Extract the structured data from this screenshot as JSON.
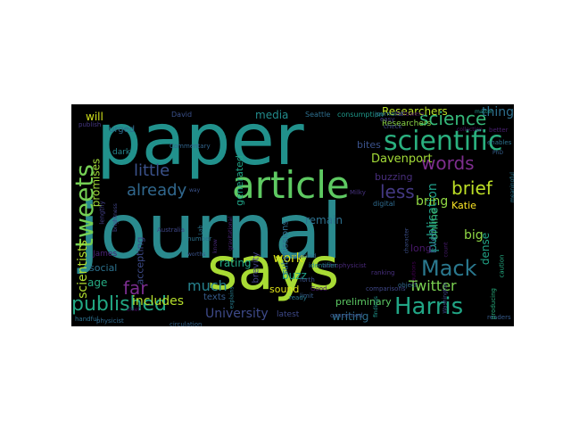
{
  "words": [
    {
      "text": "journal",
      "color": "#2a8a8e"
    },
    {
      "text": "paper",
      "color": "#21918c"
    },
    {
      "text": "says",
      "color": "#a8db34"
    },
    {
      "text": "article",
      "color": "#5ec962"
    },
    {
      "text": "ideas",
      "color": "#2c728e"
    },
    {
      "text": "scientific",
      "color": "#2ab07f"
    },
    {
      "text": "Harris",
      "color": "#21a585"
    },
    {
      "text": "published",
      "color": "#22a884"
    },
    {
      "text": "tweets",
      "color": "#75d054"
    },
    {
      "text": "science",
      "color": "#35b779"
    },
    {
      "text": "Mack",
      "color": "#2a788e"
    },
    {
      "text": "words",
      "color": "#7e2e8e"
    },
    {
      "text": "brief",
      "color": "#bddf26"
    },
    {
      "text": "already",
      "color": "#31688e"
    },
    {
      "text": "little",
      "color": "#3b528b"
    },
    {
      "text": "Twitter",
      "color": "#7ad151"
    },
    {
      "text": "far",
      "color": "#7a2d8e"
    },
    {
      "text": "much",
      "color": "#26828e"
    },
    {
      "text": "University",
      "color": "#3e4a89"
    },
    {
      "text": "includes",
      "color": "#b5de2b"
    },
    {
      "text": "work",
      "color": "#dde318"
    },
    {
      "text": "less",
      "color": "#443983"
    },
    {
      "text": "scientists",
      "color": "#b0dd2f"
    },
    {
      "text": "promises",
      "color": "#a0da39"
    },
    {
      "text": "Davenport",
      "color": "#a2da37"
    },
    {
      "text": "publication",
      "color": "#1f9e89"
    },
    {
      "text": "social",
      "color": "#2c728e"
    },
    {
      "text": "writing",
      "color": "#2e6e8e"
    },
    {
      "text": "rating",
      "color": "#22a884"
    },
    {
      "text": "things",
      "color": "#2e6f8e"
    },
    {
      "text": "online",
      "color": "#3aba76"
    },
    {
      "text": "Researchers",
      "color": "#b8de29"
    },
    {
      "text": "generated",
      "color": "#20a386"
    },
    {
      "text": "bring",
      "color": "#90d743"
    },
    {
      "text": "remain",
      "color": "#2d708e"
    },
    {
      "text": "buzz",
      "color": "#1fa088"
    },
    {
      "text": "buzzing",
      "color": "#472d7b"
    },
    {
      "text": "Katie",
      "color": "#fde725"
    },
    {
      "text": "big",
      "color": "#8fd744"
    },
    {
      "text": "bites",
      "color": "#3b528b"
    },
    {
      "text": "dense",
      "color": "#20a386"
    },
    {
      "text": "sound",
      "color": "#dfe318"
    },
    {
      "text": "media",
      "color": "#228c8d"
    },
    {
      "text": "accepting",
      "color": "#3e4c8a"
    },
    {
      "text": "age",
      "color": "#25ab82"
    },
    {
      "text": "preliminary",
      "color": "#5cc863"
    },
    {
      "text": "Even",
      "color": "#306a8e"
    },
    {
      "text": "will",
      "color": "#d0e11c"
    },
    {
      "text": "long",
      "color": "#48186a"
    },
    {
      "text": "submissions",
      "color": "#2f6c8e"
    },
    {
      "text": "brevity",
      "color": "#424186"
    },
    {
      "text": "texts",
      "color": "#365c8d"
    },
    {
      "text": "latest",
      "color": "#3e4989"
    },
    {
      "text": "Milky",
      "color": "#46327e"
    },
    {
      "text": "urged",
      "color": "#2f6b8e"
    },
    {
      "text": "dark",
      "color": "#25858e"
    },
    {
      "text": "James",
      "color": "#482173"
    },
    {
      "text": "David",
      "color": "#3b518b"
    },
    {
      "text": "Seattle",
      "color": "#2e6f8e"
    },
    {
      "text": "consumption",
      "color": "#1f998a"
    },
    {
      "text": "journalist",
      "color": "#2d718e"
    },
    {
      "text": "followers",
      "color": "#471063"
    },
    {
      "text": "Researchers",
      "color": "#8bd646"
    },
    {
      "text": "Commentary",
      "color": "#32658e"
    },
    {
      "text": "publish",
      "color": "#453781"
    },
    {
      "text": "Australia",
      "color": "#3f4889"
    },
    {
      "text": "physicist",
      "color": "#30698e"
    },
    {
      "text": "astrophysicist",
      "color": "#482878"
    },
    {
      "text": "comparisons",
      "color": "#3f4788"
    },
    {
      "text": "ranking",
      "color": "#472f7d"
    },
    {
      "text": "limit",
      "color": "#365d8d"
    },
    {
      "text": "digital",
      "color": "#2f6b8e"
    },
    {
      "text": "caution",
      "color": "#25ab82"
    },
    {
      "text": "concerned",
      "color": "#3b528b"
    },
    {
      "text": "Good",
      "color": "#48186a"
    },
    {
      "text": "circulation",
      "color": "#33638d"
    },
    {
      "text": "gravitational",
      "color": "#482475"
    },
    {
      "text": "lengthy",
      "color": "#423f85"
    },
    {
      "text": "handful",
      "color": "#2d718e"
    },
    {
      "text": "readers",
      "color": "#365c8d"
    },
    {
      "text": "check",
      "color": "#3e4a89"
    },
    {
      "text": "identifier",
      "color": "#25838e"
    },
    {
      "text": "object",
      "color": "#31688e"
    },
    {
      "text": "producing",
      "color": "#29af7f"
    },
    {
      "text": "cautions",
      "color": "#440154"
    },
    {
      "text": "matter",
      "color": "#1f968b"
    },
    {
      "text": "forth",
      "color": "#3b528b"
    },
    {
      "text": "ready",
      "color": "#2a788e"
    },
    {
      "text": "chief",
      "color": "#46085c"
    },
    {
      "text": "explains",
      "color": "#287d8e"
    },
    {
      "text": "number",
      "color": "#2c738e"
    },
    {
      "text": "know",
      "color": "#482979"
    },
    {
      "text": "worths",
      "color": "#3a548c"
    },
    {
      "text": "brightness",
      "color": "#404688"
    },
    {
      "text": "enables",
      "color": "#2c728e"
    },
    {
      "text": "better",
      "color": "#481f70"
    },
    {
      "text": "PhD",
      "color": "#355f8d"
    },
    {
      "text": "easy",
      "color": "#433e85"
    },
    {
      "text": "meaningful",
      "color": "#2a768e"
    },
    {
      "text": "substantive",
      "color": "#3d4d8a"
    },
    {
      "text": "character",
      "color": "#3c4f8a"
    },
    {
      "text": "findings",
      "color": "#1f958b"
    },
    {
      "text": "Washington",
      "color": "#3f4889"
    },
    {
      "text": "count",
      "color": "#481c6e"
    },
    {
      "text": "way",
      "color": "#3a538b"
    },
    {
      "text": "collection",
      "color": "#481668"
    },
    {
      "text": "Lab",
      "color": "#2b748e"
    },
    {
      "text": "appeared",
      "color": "#33638d"
    }
  ]
}
